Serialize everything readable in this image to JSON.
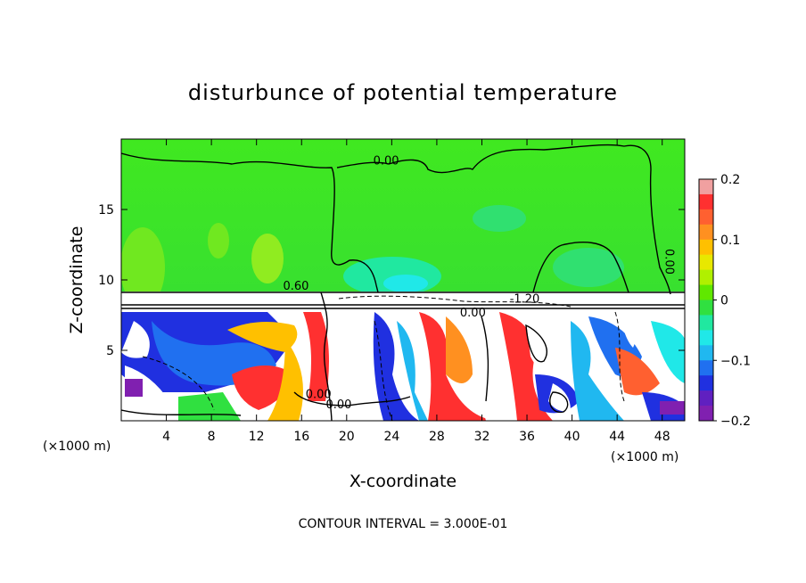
{
  "chart_data": {
    "type": "heatmap",
    "title": "disturbunce of potential temperature",
    "xlabel": "X-coordinate",
    "ylabel": "Z-coordinate",
    "x_unit": "(×1000 m)",
    "y_unit": "(×1000 m)",
    "footer": "CONTOUR INTERVAL = 3.000E-01",
    "xlim": [
      0,
      50
    ],
    "ylim": [
      0,
      20
    ],
    "x_ticks": [
      4,
      8,
      12,
      16,
      20,
      24,
      28,
      32,
      36,
      40,
      44,
      48
    ],
    "y_ticks": [
      5,
      10,
      15
    ],
    "colorbar": {
      "min": -0.2,
      "max": 0.2,
      "ticks": [
        0.2,
        0.1,
        0,
        -0.1,
        -0.2
      ],
      "tick_labels": [
        "0.2",
        "0.1",
        "0",
        "−0.1",
        "−0.2"
      ],
      "colors": [
        "#f0a0a0",
        "#ff3030",
        "#ff6030",
        "#ff9020",
        "#ffc000",
        "#e8e800",
        "#b0f000",
        "#60e800",
        "#30e040",
        "#20e8a0",
        "#20e8e8",
        "#20b8f0",
        "#2070f0",
        "#2030e0",
        "#6020c0",
        "#8020b0"
      ]
    },
    "contour_labels": [
      {
        "text": "0.00",
        "x": 23.5,
        "y": 18.2
      },
      {
        "text": "0.00",
        "x": 48.3,
        "y": 11.3
      },
      {
        "text": "0.60",
        "x": 15.5,
        "y": 9.3
      },
      {
        "text": "-1.20",
        "x": 35.8,
        "y": 8.4
      },
      {
        "text": "0.00",
        "x": 31.2,
        "y": 7.4
      },
      {
        "text": "0.00",
        "x": 17.5,
        "y": 1.6
      },
      {
        "text": "0.00",
        "x": 19.3,
        "y": 0.9
      }
    ]
  }
}
